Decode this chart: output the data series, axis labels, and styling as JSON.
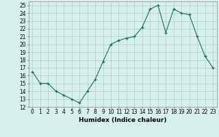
{
  "x": [
    0,
    1,
    2,
    3,
    4,
    5,
    6,
    7,
    8,
    9,
    10,
    11,
    12,
    13,
    14,
    15,
    16,
    17,
    18,
    19,
    20,
    21,
    22,
    23
  ],
  "y": [
    16.5,
    15.0,
    15.0,
    14.0,
    13.5,
    13.0,
    12.5,
    14.0,
    15.5,
    17.8,
    20.0,
    20.5,
    20.8,
    21.0,
    22.2,
    24.5,
    25.0,
    21.5,
    24.5,
    24.0,
    23.8,
    21.0,
    18.5,
    17.0
  ],
  "xlabel": "Humidex (Indice chaleur)",
  "xlim": [
    -0.5,
    23.5
  ],
  "ylim": [
    12,
    25.5
  ],
  "yticks": [
    12,
    13,
    14,
    15,
    16,
    17,
    18,
    19,
    20,
    21,
    22,
    23,
    24,
    25
  ],
  "xticks": [
    0,
    1,
    2,
    3,
    4,
    5,
    6,
    7,
    8,
    9,
    10,
    11,
    12,
    13,
    14,
    15,
    16,
    17,
    18,
    19,
    20,
    21,
    22,
    23
  ],
  "line_color": "#1a6b5a",
  "marker": "+",
  "bg_color": "#d6f0ed",
  "grid_color": "#b0ccc9",
  "label_fontsize": 6.5,
  "tick_fontsize": 5.5
}
